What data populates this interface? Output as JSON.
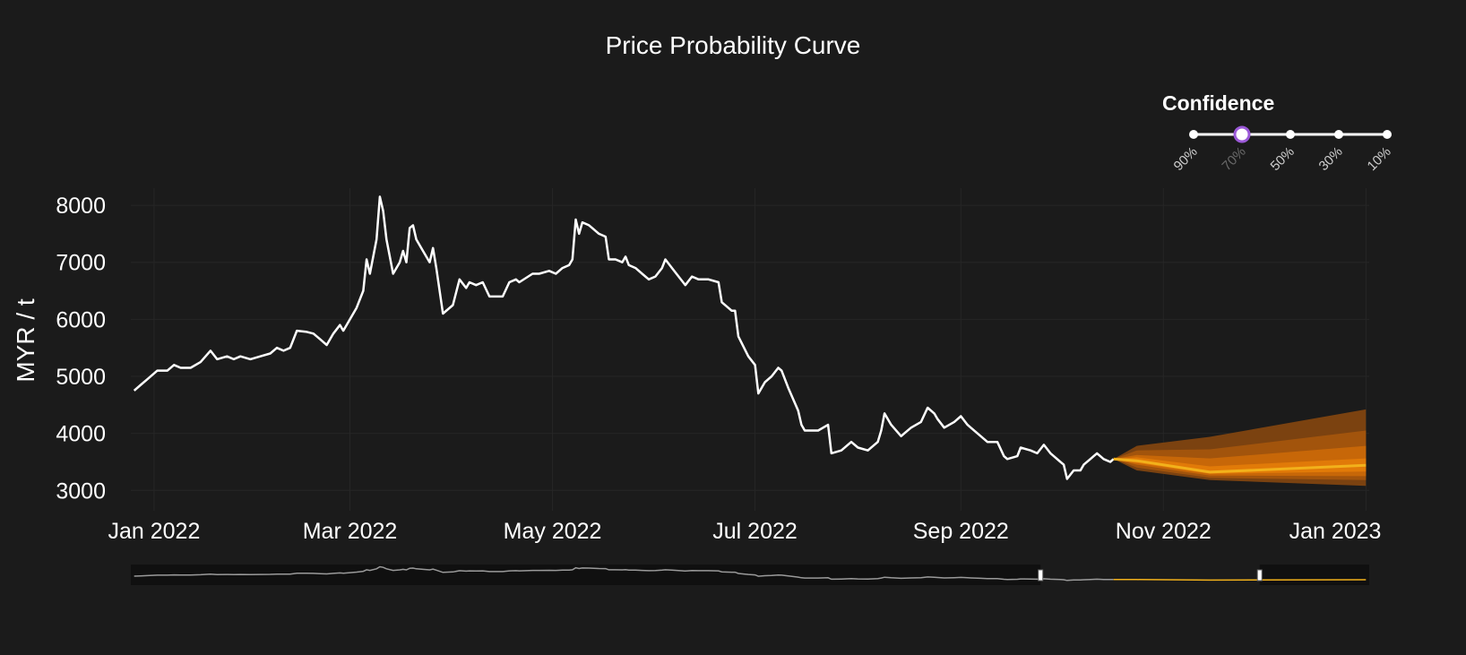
{
  "chart_data": {
    "type": "line",
    "title": "Price Probability Curve",
    "xlabel": "",
    "ylabel": "MYR / t",
    "ylim": [
      2800,
      8300
    ],
    "xlim": [
      "2021-12-25",
      "2023-01-02"
    ],
    "y_ticks": [
      3000,
      4000,
      5000,
      6000,
      7000,
      8000
    ],
    "x_ticks": [
      {
        "label": "Jan 2022",
        "date": "2022-01-01"
      },
      {
        "label": "Mar 2022",
        "date": "2022-03-01"
      },
      {
        "label": "May 2022",
        "date": "2022-05-01"
      },
      {
        "label": "Jul 2022",
        "date": "2022-07-01"
      },
      {
        "label": "Sep 2022",
        "date": "2022-09-01"
      },
      {
        "label": "Nov 2022",
        "date": "2022-11-01"
      },
      {
        "label": "Jan 2023",
        "date": "2023-01-01"
      }
    ],
    "grid": true,
    "history": [
      [
        "2021-12-26",
        4750
      ],
      [
        "2021-12-28",
        4850
      ],
      [
        "2021-12-30",
        4950
      ],
      [
        "2022-01-02",
        5100
      ],
      [
        "2022-01-05",
        5100
      ],
      [
        "2022-01-07",
        5200
      ],
      [
        "2022-01-09",
        5150
      ],
      [
        "2022-01-12",
        5150
      ],
      [
        "2022-01-15",
        5250
      ],
      [
        "2022-01-18",
        5450
      ],
      [
        "2022-01-20",
        5300
      ],
      [
        "2022-01-23",
        5350
      ],
      [
        "2022-01-25",
        5300
      ],
      [
        "2022-01-27",
        5350
      ],
      [
        "2022-01-30",
        5300
      ],
      [
        "2022-02-02",
        5350
      ],
      [
        "2022-02-05",
        5400
      ],
      [
        "2022-02-07",
        5500
      ],
      [
        "2022-02-09",
        5450
      ],
      [
        "2022-02-11",
        5500
      ],
      [
        "2022-02-13",
        5800
      ],
      [
        "2022-02-16",
        5780
      ],
      [
        "2022-02-18",
        5750
      ],
      [
        "2022-02-20",
        5650
      ],
      [
        "2022-02-22",
        5550
      ],
      [
        "2022-02-24",
        5750
      ],
      [
        "2022-02-26",
        5900
      ],
      [
        "2022-02-27",
        5800
      ],
      [
        "2022-03-01",
        6000
      ],
      [
        "2022-03-03",
        6200
      ],
      [
        "2022-03-05",
        6500
      ],
      [
        "2022-03-06",
        7050
      ],
      [
        "2022-03-07",
        6800
      ],
      [
        "2022-03-09",
        7400
      ],
      [
        "2022-03-10",
        8150
      ],
      [
        "2022-03-11",
        7900
      ],
      [
        "2022-03-12",
        7400
      ],
      [
        "2022-03-14",
        6800
      ],
      [
        "2022-03-16",
        7000
      ],
      [
        "2022-03-17",
        7200
      ],
      [
        "2022-03-18",
        7000
      ],
      [
        "2022-03-19",
        7600
      ],
      [
        "2022-03-20",
        7650
      ],
      [
        "2022-03-21",
        7400
      ],
      [
        "2022-03-23",
        7200
      ],
      [
        "2022-03-25",
        7000
      ],
      [
        "2022-03-26",
        7250
      ],
      [
        "2022-03-27",
        6900
      ],
      [
        "2022-03-29",
        6100
      ],
      [
        "2022-04-01",
        6250
      ],
      [
        "2022-04-03",
        6700
      ],
      [
        "2022-04-05",
        6550
      ],
      [
        "2022-04-06",
        6650
      ],
      [
        "2022-04-08",
        6600
      ],
      [
        "2022-04-10",
        6650
      ],
      [
        "2022-04-12",
        6400
      ],
      [
        "2022-04-16",
        6400
      ],
      [
        "2022-04-18",
        6650
      ],
      [
        "2022-04-20",
        6700
      ],
      [
        "2022-04-21",
        6650
      ],
      [
        "2022-04-25",
        6800
      ],
      [
        "2022-04-27",
        6800
      ],
      [
        "2022-04-30",
        6850
      ],
      [
        "2022-05-02",
        6800
      ],
      [
        "2022-05-04",
        6900
      ],
      [
        "2022-05-06",
        6950
      ],
      [
        "2022-05-07",
        7050
      ],
      [
        "2022-05-08",
        7750
      ],
      [
        "2022-05-09",
        7500
      ],
      [
        "2022-05-10",
        7700
      ],
      [
        "2022-05-12",
        7650
      ],
      [
        "2022-05-15",
        7500
      ],
      [
        "2022-05-17",
        7450
      ],
      [
        "2022-05-18",
        7050
      ],
      [
        "2022-05-20",
        7050
      ],
      [
        "2022-05-22",
        7000
      ],
      [
        "2022-05-23",
        7100
      ],
      [
        "2022-05-24",
        6950
      ],
      [
        "2022-05-26",
        6900
      ],
      [
        "2022-05-28",
        6800
      ],
      [
        "2022-05-30",
        6700
      ],
      [
        "2022-06-01",
        6750
      ],
      [
        "2022-06-03",
        6900
      ],
      [
        "2022-06-04",
        7050
      ],
      [
        "2022-06-06",
        6900
      ],
      [
        "2022-06-08",
        6750
      ],
      [
        "2022-06-10",
        6600
      ],
      [
        "2022-06-12",
        6750
      ],
      [
        "2022-06-14",
        6700
      ],
      [
        "2022-06-17",
        6700
      ],
      [
        "2022-06-20",
        6650
      ],
      [
        "2022-06-21",
        6300
      ],
      [
        "2022-06-24",
        6150
      ],
      [
        "2022-06-25",
        6150
      ],
      [
        "2022-06-26",
        5700
      ],
      [
        "2022-06-29",
        5350
      ],
      [
        "2022-07-01",
        5200
      ],
      [
        "2022-07-02",
        4700
      ],
      [
        "2022-07-04",
        4900
      ],
      [
        "2022-07-06",
        5000
      ],
      [
        "2022-07-08",
        5150
      ],
      [
        "2022-07-09",
        5100
      ],
      [
        "2022-07-11",
        4800
      ],
      [
        "2022-07-14",
        4400
      ],
      [
        "2022-07-15",
        4150
      ],
      [
        "2022-07-16",
        4050
      ],
      [
        "2022-07-20",
        4050
      ],
      [
        "2022-07-23",
        4150
      ],
      [
        "2022-07-24",
        3650
      ],
      [
        "2022-07-27",
        3700
      ],
      [
        "2022-07-30",
        3850
      ],
      [
        "2022-08-01",
        3750
      ],
      [
        "2022-08-04",
        3700
      ],
      [
        "2022-08-07",
        3850
      ],
      [
        "2022-08-08",
        4050
      ],
      [
        "2022-08-09",
        4350
      ],
      [
        "2022-08-11",
        4150
      ],
      [
        "2022-08-14",
        3950
      ],
      [
        "2022-08-15",
        4000
      ],
      [
        "2022-08-17",
        4100
      ],
      [
        "2022-08-20",
        4200
      ],
      [
        "2022-08-22",
        4450
      ],
      [
        "2022-08-24",
        4350
      ],
      [
        "2022-08-25",
        4250
      ],
      [
        "2022-08-27",
        4100
      ],
      [
        "2022-08-30",
        4200
      ],
      [
        "2022-09-01",
        4300
      ],
      [
        "2022-09-03",
        4150
      ],
      [
        "2022-09-04",
        4100
      ],
      [
        "2022-09-07",
        3950
      ],
      [
        "2022-09-09",
        3850
      ],
      [
        "2022-09-12",
        3850
      ],
      [
        "2022-09-14",
        3600
      ],
      [
        "2022-09-15",
        3550
      ],
      [
        "2022-09-18",
        3600
      ],
      [
        "2022-09-19",
        3750
      ],
      [
        "2022-09-22",
        3700
      ],
      [
        "2022-09-24",
        3650
      ],
      [
        "2022-09-26",
        3800
      ],
      [
        "2022-09-28",
        3650
      ],
      [
        "2022-10-01",
        3500
      ],
      [
        "2022-10-02",
        3450
      ],
      [
        "2022-10-03",
        3200
      ],
      [
        "2022-10-05",
        3350
      ],
      [
        "2022-10-07",
        3350
      ],
      [
        "2022-10-08",
        3450
      ],
      [
        "2022-10-10",
        3550
      ],
      [
        "2022-10-12",
        3650
      ],
      [
        "2022-10-14",
        3550
      ],
      [
        "2022-10-16",
        3500
      ],
      [
        "2022-10-17",
        3550
      ]
    ],
    "forecast": {
      "dates": [
        "2022-10-17",
        "2022-10-24",
        "2022-11-15",
        "2023-01-01"
      ],
      "median": [
        3550,
        3520,
        3320,
        3440
      ],
      "bands": [
        {
          "confidence": "90%",
          "low": [
            3550,
            3350,
            3180,
            3080
          ],
          "high": [
            3550,
            3780,
            3940,
            4420
          ]
        },
        {
          "confidence": "70%",
          "low": [
            3550,
            3400,
            3220,
            3180
          ],
          "high": [
            3550,
            3700,
            3720,
            4050
          ]
        },
        {
          "confidence": "50%",
          "low": [
            3550,
            3450,
            3260,
            3250
          ],
          "high": [
            3550,
            3620,
            3560,
            3780
          ]
        },
        {
          "confidence": "30%",
          "low": [
            3550,
            3480,
            3290,
            3330
          ],
          "high": [
            3550,
            3580,
            3420,
            3560
          ]
        }
      ]
    }
  },
  "colors": {
    "background": "#1b1b1b",
    "history_line": "#ffffff",
    "median_line": "#f2b11b",
    "band_fills": [
      "#7b4210",
      "#a2540c",
      "#c76708",
      "#e17a08"
    ],
    "confidence_selected": "#9b59d8",
    "rangeslider_bg": "#101010"
  },
  "confidence": {
    "title": "Confidence",
    "options": [
      "90%",
      "70%",
      "50%",
      "30%",
      "10%"
    ],
    "selected": "70%"
  },
  "rangeslider": {
    "range": [
      "2022-09-25",
      "2022-11-30"
    ]
  }
}
